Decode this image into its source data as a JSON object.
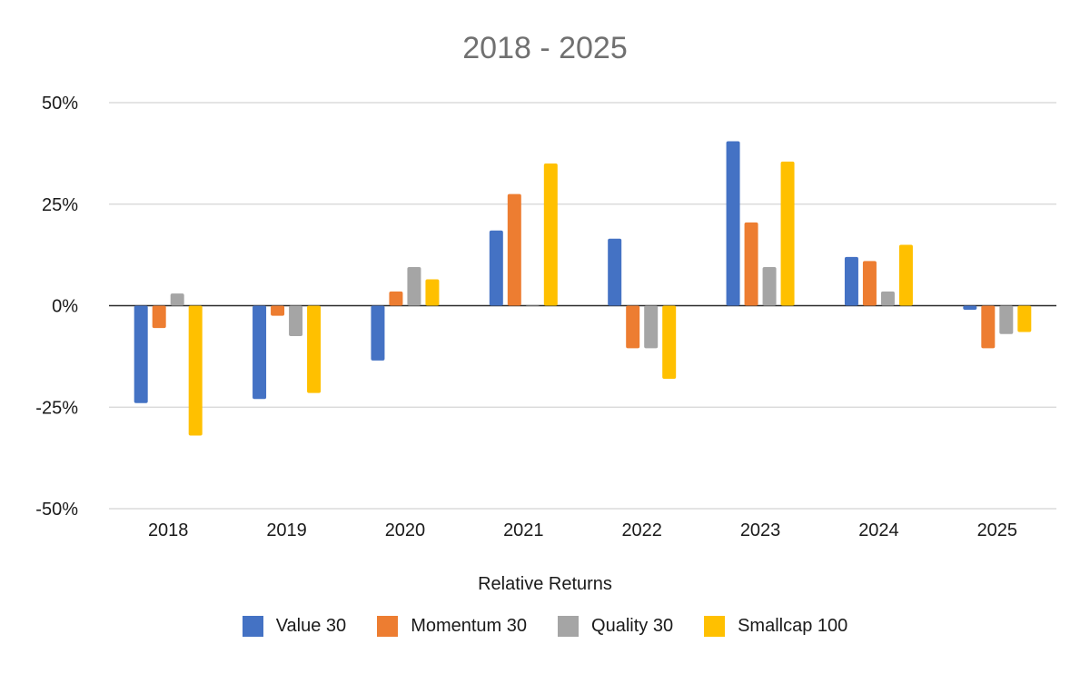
{
  "chart_data": {
    "type": "bar",
    "title": "2018 - 2025",
    "xlabel": "Relative Returns",
    "ylabel": "",
    "ylim": [
      -50,
      50
    ],
    "y_ticks": [
      50,
      25,
      0,
      -25,
      -50
    ],
    "y_tick_labels": [
      "50%",
      "25%",
      "0%",
      "-25%",
      "-50%"
    ],
    "grid": true,
    "legend_position": "bottom",
    "categories": [
      "2018",
      "2019",
      "2020",
      "2021",
      "2022",
      "2023",
      "2024",
      "2025"
    ],
    "series": [
      {
        "name": "Value 30",
        "color": "#4472C4",
        "values": [
          -24,
          -23,
          -13.5,
          18.5,
          16.5,
          40.5,
          12,
          -1
        ]
      },
      {
        "name": "Momentum 30",
        "color": "#ED7D31",
        "values": [
          -5.5,
          -2.5,
          3.5,
          27.5,
          -10.5,
          20.5,
          11,
          -10.5
        ]
      },
      {
        "name": "Quality 30",
        "color": "#A5A5A5",
        "values": [
          3,
          -7.5,
          9.5,
          0,
          -10.5,
          9.5,
          3.5,
          -7
        ]
      },
      {
        "name": "Smallcap 100",
        "color": "#FFC000",
        "values": [
          -32,
          -21.5,
          6.5,
          35,
          -18,
          35.5,
          15,
          -6.5
        ]
      }
    ]
  }
}
